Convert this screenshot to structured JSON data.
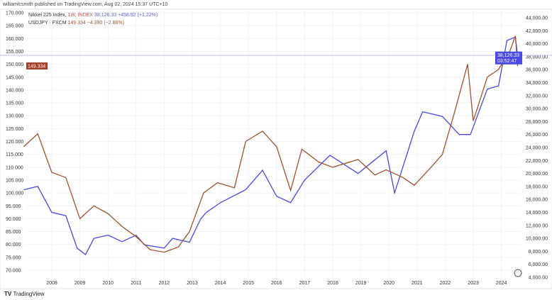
{
  "header": "williamlcsmith published on TradingView.com, Aug 02, 2024 15:37 UTC+10",
  "legend": {
    "nikkei": {
      "name": "Nikkei 225 Index,",
      "interval": "1W,",
      "exchange": "INDEX",
      "price": "38,126.33",
      "change": "+458.92 (+1.22%)"
    },
    "usdjpy": {
      "name": "USDJPY · FXCM",
      "price": "149.334",
      "change": "−4.390 (−2.86%)"
    }
  },
  "brand": "TradingView",
  "badges": {
    "left": "149.334",
    "right_price": "38,126.33",
    "right_time": "03:52:47"
  },
  "colors": {
    "nikkei": "#4a4ae0",
    "usdjpy": "#a0522d",
    "badge_left": "#a0412d",
    "badge_right": "#4a4ae0"
  },
  "chart_data": {
    "type": "line",
    "xlabels": [
      "2008",
      "2009",
      "2010",
      "2011",
      "2012",
      "2013",
      "2014",
      "2015",
      "2016",
      "2017",
      "2018",
      "2019",
      "2020",
      "2021",
      "2022",
      "2023",
      "2024"
    ],
    "left_axis": {
      "range": [
        70,
        170
      ],
      "ticks": [
        "170.000",
        "165.000",
        "160.000",
        "155.000",
        "150.000",
        "145.000",
        "140.000",
        "135.000",
        "130.000",
        "125.000",
        "120.000",
        "115.000",
        "110.000",
        "105.000",
        "100.000",
        "95.000",
        "90.000",
        "85.000",
        "80.000",
        "75.000",
        "70.000"
      ]
    },
    "right_axis": {
      "range": [
        4000,
        44000
      ],
      "ticks": [
        "44,000.00",
        "42,000.00",
        "40,000.00",
        "38,000.00",
        "36,000.00",
        "34,000.00",
        "32,000.00",
        "30,000.00",
        "28,000.00",
        "26,000.00",
        "24,000.00",
        "22,000.00",
        "20,000.00",
        "18,000.00",
        "16,000.00",
        "14,000.00",
        "12,000.00",
        "10,000.00",
        "8,000.00",
        "6,000.00",
        "4,000.00"
      ]
    },
    "series": [
      {
        "name": "Nikkei 225 Index",
        "axis": "right",
        "points": [
          [
            2007.0,
            17500
          ],
          [
            2007.5,
            18000
          ],
          [
            2008.0,
            14000
          ],
          [
            2008.5,
            13500
          ],
          [
            2008.9,
            8500
          ],
          [
            2009.2,
            7500
          ],
          [
            2009.5,
            10000
          ],
          [
            2010.0,
            10500
          ],
          [
            2010.5,
            9500
          ],
          [
            2011.0,
            10500
          ],
          [
            2011.3,
            9000
          ],
          [
            2012.0,
            8500
          ],
          [
            2012.3,
            10000
          ],
          [
            2012.9,
            9400
          ],
          [
            2013.3,
            13000
          ],
          [
            2013.5,
            14000
          ],
          [
            2014.0,
            15500
          ],
          [
            2014.9,
            17500
          ],
          [
            2015.5,
            20500
          ],
          [
            2016.0,
            16500
          ],
          [
            2016.5,
            15500
          ],
          [
            2017.0,
            19000
          ],
          [
            2017.9,
            22800
          ],
          [
            2018.9,
            20000
          ],
          [
            2019.9,
            23500
          ],
          [
            2020.2,
            17000
          ],
          [
            2020.9,
            26500
          ],
          [
            2021.2,
            29500
          ],
          [
            2021.9,
            28800
          ],
          [
            2022.5,
            26000
          ],
          [
            2022.9,
            26000
          ],
          [
            2023.5,
            33000
          ],
          [
            2023.9,
            33500
          ],
          [
            2024.2,
            40500
          ],
          [
            2024.5,
            41000
          ],
          [
            2024.58,
            38126
          ]
        ]
      },
      {
        "name": "USDJPY",
        "axis": "left",
        "points": [
          [
            2007.0,
            118
          ],
          [
            2007.5,
            123
          ],
          [
            2008.0,
            108
          ],
          [
            2008.5,
            106
          ],
          [
            2009.0,
            90
          ],
          [
            2009.5,
            95
          ],
          [
            2010.0,
            92
          ],
          [
            2010.5,
            87
          ],
          [
            2011.0,
            83
          ],
          [
            2011.5,
            78
          ],
          [
            2012.0,
            77
          ],
          [
            2012.5,
            79
          ],
          [
            2012.9,
            85
          ],
          [
            2013.4,
            100
          ],
          [
            2013.9,
            104
          ],
          [
            2014.5,
            102
          ],
          [
            2014.9,
            120
          ],
          [
            2015.5,
            124
          ],
          [
            2016.0,
            118
          ],
          [
            2016.5,
            101
          ],
          [
            2016.9,
            117
          ],
          [
            2017.5,
            112
          ],
          [
            2018.0,
            110
          ],
          [
            2018.9,
            113
          ],
          [
            2019.5,
            107
          ],
          [
            2019.9,
            109
          ],
          [
            2020.5,
            106
          ],
          [
            2020.9,
            103
          ],
          [
            2021.5,
            110
          ],
          [
            2021.9,
            115
          ],
          [
            2022.3,
            130
          ],
          [
            2022.8,
            150
          ],
          [
            2023.0,
            128
          ],
          [
            2023.5,
            145
          ],
          [
            2023.9,
            148
          ],
          [
            2024.3,
            155
          ],
          [
            2024.5,
            161
          ],
          [
            2024.58,
            149.3
          ]
        ]
      }
    ]
  }
}
